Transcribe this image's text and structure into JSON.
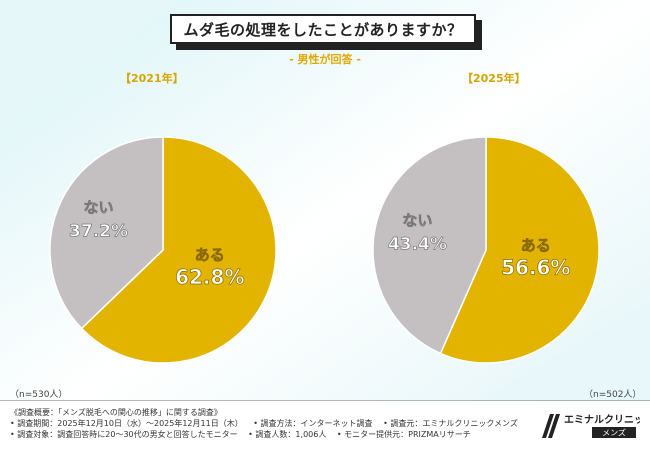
{
  "title": "ムダ毛の処理をしたことがありますか？",
  "subtitle": "- 男性が回答 -",
  "colors": {
    "yes": "#e2b400",
    "no": "#c4c0c2",
    "year_label": "#d6a400",
    "subtitle": "#e0a900"
  },
  "chart_data": [
    {
      "type": "pie",
      "year_label": "【2021年】",
      "n_label": "（n=530人）",
      "slices": [
        {
          "label": "ある",
          "value": 62.8,
          "display": "62.8%"
        },
        {
          "label": "ない",
          "value": 37.2,
          "display": "37.2%"
        }
      ]
    },
    {
      "type": "pie",
      "year_label": "【2025年】",
      "n_label": "（n=502人）",
      "slices": [
        {
          "label": "ある",
          "value": 56.6,
          "display": "56.6%"
        },
        {
          "label": "ない",
          "value": 43.4,
          "display": "43.4%"
        }
      ]
    }
  ],
  "notes": {
    "row1": [
      "《調査概要：「メンズ脱毛への関心の推移」に関する調査》"
    ],
    "row2": [
      "• 調査期間：2025年12月10日（水）〜2025年12月11日（木）",
      "• 調査方法：インターネット調査",
      "• 調査元：エミナルクリニックメンズ"
    ],
    "row3": [
      "• 調査対象：調査回答時に20〜30代の男女と回答したモニター",
      "• 調査人数：1,006人",
      "• モニター提供元：PRIZMAリサーチ"
    ]
  },
  "logo": {
    "name": "エミナルクリニック",
    "sub": "メンズ"
  }
}
